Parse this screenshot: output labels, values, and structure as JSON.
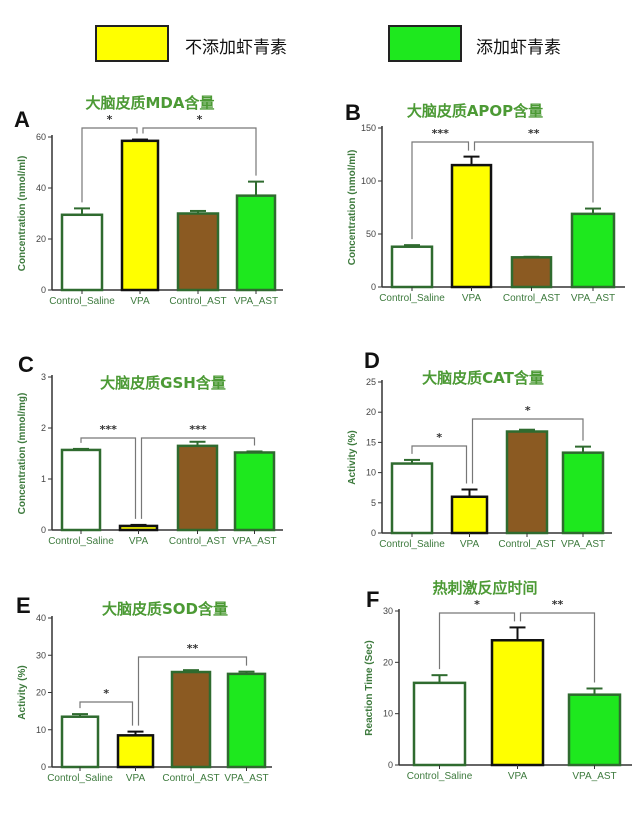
{
  "legend": [
    {
      "label": "不添加虾青素",
      "color": "#ffff00"
    },
    {
      "label": "添加虾青素",
      "color": "#1ee81e"
    }
  ],
  "group_colors": {
    "Control_Saline": "#ffffff",
    "VPA": "#ffff00",
    "Control_AST": "#8b5a22",
    "VPA_AST": "#1ee81e"
  },
  "chart_data": [
    {
      "panel": "A",
      "type": "bar",
      "title": "大脑皮质MDA含量",
      "ylabel": "Concentration (nmol/ml)",
      "ylim": [
        0,
        60
      ],
      "yticks": [
        0,
        20,
        40,
        60
      ],
      "categories": [
        "Control_Saline",
        "VPA",
        "Control_AST",
        "VPA_AST"
      ],
      "values": [
        29.5,
        58.5,
        30,
        37
      ],
      "errors": [
        2.5,
        0.5,
        1,
        5.5
      ],
      "annotations": [
        {
          "between": [
            "Control_Saline",
            "VPA"
          ],
          "label": "*"
        },
        {
          "between": [
            "VPA",
            "VPA_AST"
          ],
          "label": "*"
        }
      ]
    },
    {
      "panel": "B",
      "type": "bar",
      "title": "大脑皮质APOP含量",
      "ylabel": "Concentration (nmol/ml)",
      "ylim": [
        0,
        150
      ],
      "yticks": [
        0,
        50,
        100,
        150
      ],
      "categories": [
        "Control_Saline",
        "VPA",
        "Control_AST",
        "VPA_AST"
      ],
      "values": [
        38,
        115,
        28,
        69
      ],
      "errors": [
        1.5,
        8,
        0.5,
        5
      ],
      "annotations": [
        {
          "between": [
            "Control_Saline",
            "VPA"
          ],
          "label": "***"
        },
        {
          "between": [
            "VPA",
            "VPA_AST"
          ],
          "label": "**"
        }
      ]
    },
    {
      "panel": "C",
      "type": "bar",
      "title": "大脑皮质GSH含量",
      "ylabel": "Concentration (mmol/mg)",
      "ylim": [
        0,
        3
      ],
      "yticks": [
        0,
        1,
        2,
        3
      ],
      "categories": [
        "Control_Saline",
        "VPA",
        "Control_AST",
        "VPA_AST"
      ],
      "values": [
        1.57,
        0.08,
        1.65,
        1.52
      ],
      "errors": [
        0.02,
        0.02,
        0.08,
        0.02
      ],
      "annotations": [
        {
          "between": [
            "Control_Saline",
            "VPA"
          ],
          "label": "***"
        },
        {
          "between": [
            "VPA",
            "VPA_AST"
          ],
          "label": "***"
        }
      ]
    },
    {
      "panel": "D",
      "type": "bar",
      "title": "大脑皮质CAT含量",
      "ylabel": "Activity (%)",
      "ylim": [
        0,
        25
      ],
      "yticks": [
        0,
        5,
        10,
        15,
        20,
        25
      ],
      "categories": [
        "Control_Saline",
        "VPA",
        "Control_AST",
        "VPA_AST"
      ],
      "values": [
        11.5,
        6,
        16.8,
        13.3
      ],
      "errors": [
        0.6,
        1.2,
        0.3,
        1
      ],
      "annotations": [
        {
          "between": [
            "Control_Saline",
            "VPA"
          ],
          "label": "*"
        },
        {
          "between": [
            "VPA",
            "VPA_AST"
          ],
          "label": "*"
        }
      ]
    },
    {
      "panel": "E",
      "type": "bar",
      "title": "大脑皮质SOD含量",
      "ylabel": "Activity (%)",
      "ylim": [
        0,
        40
      ],
      "yticks": [
        0,
        10,
        20,
        30,
        40
      ],
      "categories": [
        "Control_Saline",
        "VPA",
        "Control_AST",
        "VPA_AST"
      ],
      "values": [
        13.5,
        8.5,
        25.5,
        25
      ],
      "errors": [
        0.7,
        1,
        0.5,
        0.6
      ],
      "annotations": [
        {
          "between": [
            "Control_Saline",
            "VPA"
          ],
          "label": "*"
        },
        {
          "between": [
            "VPA",
            "VPA_AST"
          ],
          "label": "**"
        }
      ]
    },
    {
      "panel": "F",
      "type": "bar",
      "title": "热刺激反应时间",
      "ylabel": "Reaction  Time (Sec)",
      "ylim": [
        0,
        30
      ],
      "yticks": [
        0,
        10,
        20,
        30
      ],
      "categories": [
        "Control_Saline",
        "VPA",
        "VPA_AST"
      ],
      "values": [
        16,
        24.3,
        13.7
      ],
      "errors": [
        1.5,
        2.5,
        1.2
      ],
      "annotations": [
        {
          "between": [
            "Control_Saline",
            "VPA"
          ],
          "label": "*"
        },
        {
          "between": [
            "VPA",
            "VPA_AST"
          ],
          "label": "**"
        }
      ]
    }
  ]
}
